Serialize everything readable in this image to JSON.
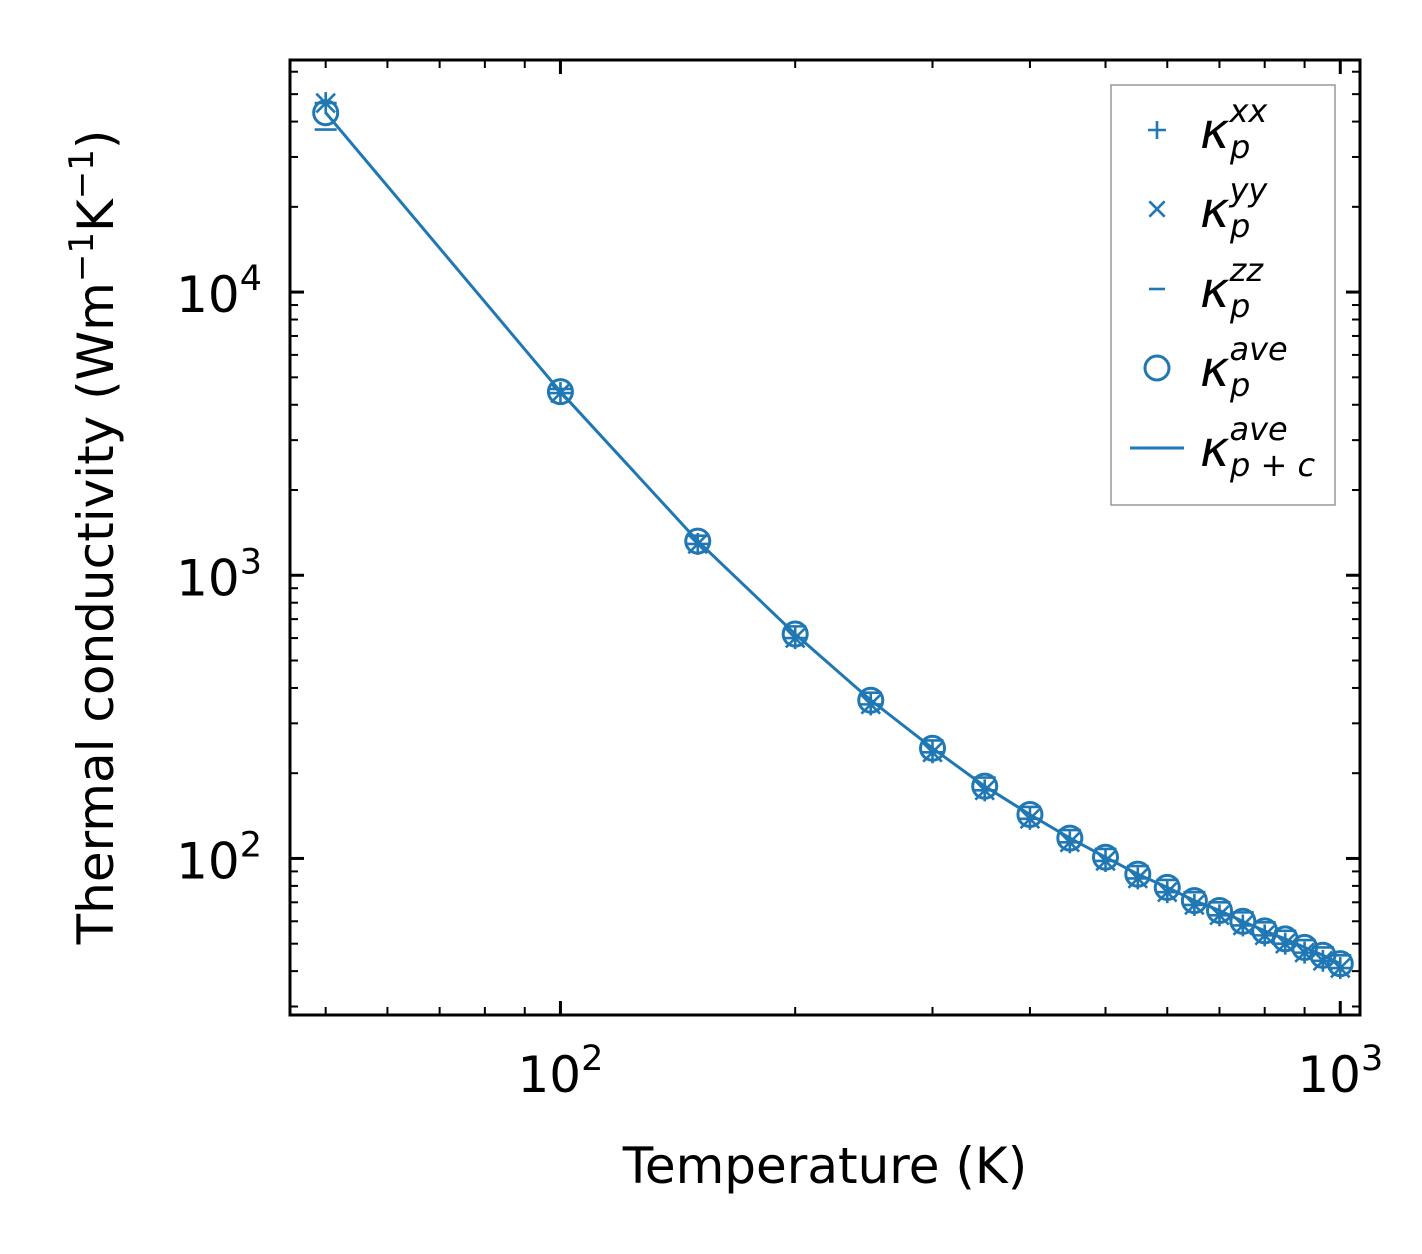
{
  "chart_data": {
    "type": "scatter",
    "xscale": "log",
    "yscale": "log",
    "xlabel": "Temperature (K)",
    "ylabel": "Thermal conductivity (Wm",
    "ylabel_sup1": "−1",
    "ylabel_mid": "K",
    "ylabel_sup2": "−1",
    "ylabel_end": ")",
    "xlim": [
      45,
      1060
    ],
    "ylim": [
      28,
      66000
    ],
    "x_ticks": [
      {
        "value": 100,
        "base": "10",
        "exp": "2"
      },
      {
        "value": 1000,
        "base": "10",
        "exp": "3"
      }
    ],
    "y_ticks": [
      {
        "value": 100,
        "base": "10",
        "exp": "2"
      },
      {
        "value": 1000,
        "base": "10",
        "exp": "3"
      },
      {
        "value": 10000,
        "base": "10",
        "exp": "4"
      }
    ],
    "color": "#1f77b4",
    "x": [
      50,
      100,
      150,
      200,
      250,
      300,
      350,
      400,
      450,
      500,
      550,
      600,
      650,
      700,
      750,
      800,
      850,
      900,
      950,
      1000
    ],
    "series": [
      {
        "name": "kappa_p_xx",
        "marker": "plus",
        "values": [
          46500,
          4400,
          1290,
          600,
          350,
          237,
          174,
          138,
          114,
          98,
          85,
          76,
          68.5,
          63,
          58,
          53.5,
          50,
          46.5,
          43.5,
          41
        ]
      },
      {
        "name": "kappa_p_yy",
        "marker": "x",
        "values": [
          46500,
          4400,
          1290,
          600,
          350,
          237,
          174,
          138,
          114,
          98,
          85,
          76,
          68.5,
          63,
          58,
          53.5,
          50,
          46.5,
          43.5,
          41
        ]
      },
      {
        "name": "kappa_p_zz",
        "marker": "dash",
        "values": [
          37500,
          4550,
          1380,
          660,
          385,
          261,
          193,
          152,
          126,
          108,
          94,
          84,
          76,
          70,
          64.5,
          59.5,
          55.5,
          51.5,
          48.5,
          45.5
        ]
      },
      {
        "name": "kappa_p_ave",
        "marker": "circle",
        "values": [
          43000,
          4450,
          1320,
          620,
          362,
          245,
          180,
          143,
          118,
          101,
          88,
          79,
          71,
          65.5,
          60,
          55.5,
          52,
          48.5,
          45.5,
          42.5
        ]
      },
      {
        "name": "kappa_p+c_ave",
        "marker": "line",
        "values": [
          43000,
          4450,
          1320,
          620,
          362,
          245,
          180,
          143,
          118,
          101,
          88,
          79,
          71,
          65.5,
          60,
          55.5,
          52,
          48.5,
          45.5,
          42.5
        ]
      }
    ],
    "legend": {
      "placement": "top-right",
      "entries": [
        {
          "symbol": "κ",
          "sub": "p",
          "sup": "xx",
          "marker": "plus"
        },
        {
          "symbol": "κ",
          "sub": "p",
          "sup": "yy",
          "marker": "x"
        },
        {
          "symbol": "κ",
          "sub": "p",
          "sup": "zz",
          "marker": "dash"
        },
        {
          "symbol": "κ",
          "sub": "p",
          "sup": "ave",
          "marker": "circle"
        },
        {
          "symbol": "κ",
          "sub": "p + c",
          "sup": "ave",
          "marker": "line"
        }
      ]
    }
  }
}
